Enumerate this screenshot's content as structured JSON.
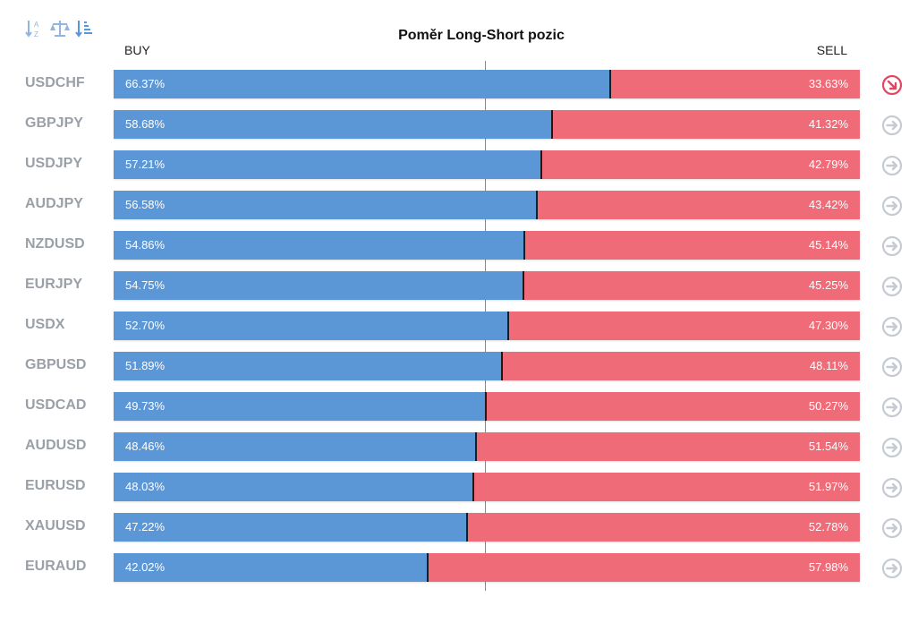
{
  "title": "Poměr Long-Short pozic",
  "buy_label": "BUY",
  "sell_label": "SELL",
  "toolbar": [
    {
      "icon": "sort-alpha-icon"
    },
    {
      "icon": "balance-scale-icon"
    },
    {
      "icon": "sort-amount-icon"
    }
  ],
  "colors": {
    "buy": "#5b97d7",
    "sell": "#f06b78",
    "pair_text": "#9aa0a8",
    "neutral_arrow": "#c5cad3",
    "active_arrow": "#e54560"
  },
  "chart_data": {
    "type": "bar",
    "orientation": "horizontal-stacked",
    "title": "Poměr Long-Short pozic",
    "categories": [
      "USDCHF",
      "GBPJPY",
      "USDJPY",
      "AUDJPY",
      "NZDUSD",
      "EURJPY",
      "USDX",
      "GBPUSD",
      "USDCAD",
      "AUDUSD",
      "EURUSD",
      "XAUUSD",
      "EURAUD"
    ],
    "series": [
      {
        "name": "BUY",
        "values": [
          66.37,
          58.68,
          57.21,
          56.58,
          54.86,
          54.75,
          52.7,
          51.89,
          49.73,
          48.46,
          48.03,
          47.22,
          42.02
        ]
      },
      {
        "name": "SELL",
        "values": [
          33.63,
          41.32,
          42.79,
          43.42,
          45.14,
          45.25,
          47.3,
          48.11,
          50.27,
          51.54,
          51.97,
          52.78,
          57.98
        ]
      }
    ],
    "labels_buy": [
      "66.37%",
      "58.68%",
      "57.21%",
      "56.58%",
      "54.86%",
      "54.75%",
      "52.70%",
      "51.89%",
      "49.73%",
      "48.46%",
      "48.03%",
      "47.22%",
      "42.02%"
    ],
    "labels_sell": [
      "33.63%",
      "41.32%",
      "42.79%",
      "43.42%",
      "45.14%",
      "45.25%",
      "47.30%",
      "48.11%",
      "50.27%",
      "51.54%",
      "51.97%",
      "52.78%",
      "57.98%"
    ],
    "arrows": [
      "down-right",
      "right",
      "right",
      "right",
      "right",
      "right",
      "right",
      "right",
      "right",
      "right",
      "right",
      "right",
      "right"
    ],
    "xlim": [
      0,
      100
    ]
  }
}
